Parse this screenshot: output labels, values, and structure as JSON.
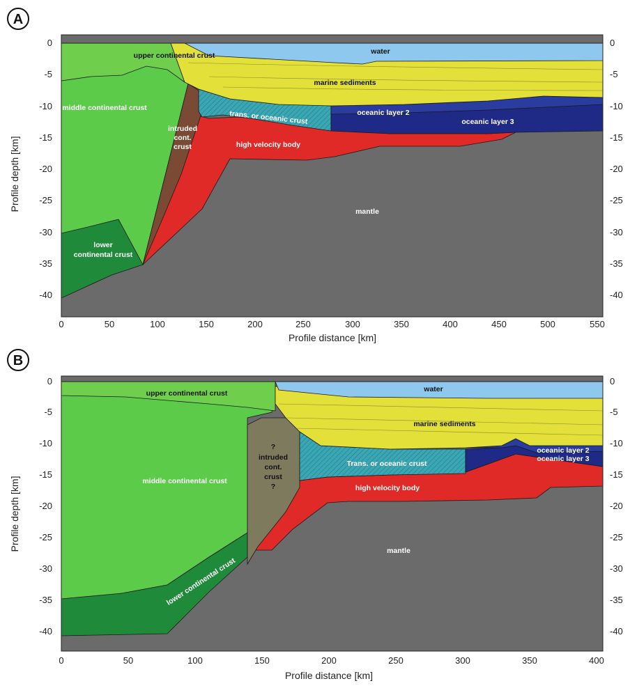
{
  "panel_a": {
    "badge": "A",
    "xlabel": "Profile distance [km]",
    "ylabel": "Profile depth [km]",
    "x_ticks": [
      "0",
      "50",
      "100",
      "150",
      "200",
      "250",
      "300",
      "350",
      "400",
      "450",
      "500",
      "550"
    ],
    "y_ticks": [
      "0",
      "-5",
      "-10",
      "-15",
      "-20",
      "-25",
      "-30",
      "-35",
      "-40"
    ],
    "labels": {
      "water": "water",
      "upper_crust": "upper continental crust",
      "marine_sediments": "marine sediments",
      "middle_crust": "middle continental crust",
      "intruded_1": "intruded",
      "intruded_2": "cont.",
      "intruded_3": "crust",
      "trans_oceanic": "trans. or oceanic crust",
      "oceanic_layer_2": "oceanic layer 2",
      "oceanic_layer_3": "oceanic layer 3",
      "high_velocity": "high velocity body",
      "mantle": "mantle",
      "lower_crust_1": "lower",
      "lower_crust_2": "continental crust"
    }
  },
  "panel_b": {
    "badge": "B",
    "xlabel": "Profile distance [km]",
    "ylabel": "Profile depth [km]",
    "x_ticks": [
      "0",
      "50",
      "100",
      "150",
      "200",
      "250",
      "300",
      "350",
      "400"
    ],
    "y_ticks": [
      "0",
      "-5",
      "-10",
      "-15",
      "-20",
      "-25",
      "-30",
      "-35",
      "-40"
    ],
    "labels": {
      "water": "water",
      "upper_crust": "upper continental crust",
      "marine_sediments": "marine sediments",
      "middle_crust": "middle continental crust",
      "intruded_q1": "?",
      "intruded_1": "intruded",
      "intruded_2": "cont.",
      "intruded_3": "crust",
      "intruded_q2": "?",
      "trans_oceanic": "Trans. or oceanic crust",
      "oceanic_layer_2": "oceanic layer 2",
      "oceanic_layer_3": "oceanic layer 3",
      "high_velocity": "high velocity body",
      "mantle": "mantle",
      "lower_crust": "lower continental crust"
    }
  },
  "colors": {
    "water": "#8ec8ee",
    "upper_crust": "#6fcf4c",
    "middle_crust": "#5ccb4a",
    "lower_crust": "#1f8a3a",
    "sediments": "#e3e03a",
    "intruded_a": "#7a4a34",
    "intruded_b": "#7d7a5e",
    "trans_oceanic": "#3aa7b4",
    "oceanic_2": "#2a3d9e",
    "oceanic_3": "#1e2a86",
    "high_velocity": "#df2a27",
    "mantle": "#6b6b6b"
  }
}
